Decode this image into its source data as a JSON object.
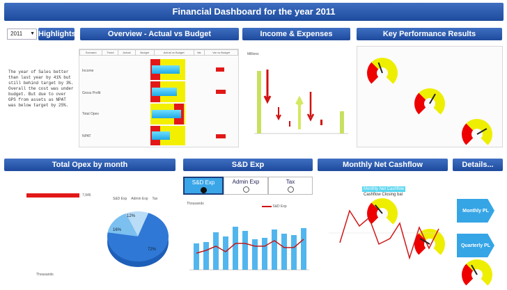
{
  "title": "Financial Dashboard for the year 2011",
  "year_select": "2011",
  "sections": {
    "highlights": "Highlights",
    "overview": "Overview - Actual vs Budget",
    "income": "Income & Expenses",
    "kpi": "Key Performance Results",
    "opex": "Total Opex by month",
    "sd": "S&D Exp",
    "cashflow": "Monthly Net Cashflow",
    "details": "Details..."
  },
  "highlights_text": "The year of Sales better than last year by 41% but still behind target by 3%. Overall the cost was under budget. But due to over GPS from assets as NPAT was below target by 25%.",
  "overview_table": {
    "headers": [
      "Scenario",
      "Trend",
      "Actual",
      "Budget",
      "Actual vs Budget",
      "Var",
      "Var vs Budget"
    ],
    "rows": [
      "Income",
      "Gross Profit",
      "Total Opex",
      "NPAT"
    ]
  },
  "income_chart": {
    "ylabel": "Millions"
  },
  "opex": {
    "bar_value": "7,945",
    "legend": [
      "S&D Exp",
      "Admin Exp",
      "Tax"
    ],
    "pie": [
      {
        "label": "72%",
        "value": 72,
        "color": "#2f78d6"
      },
      {
        "label": "16%",
        "value": 16,
        "color": "#7cc0f0"
      },
      {
        "label": "12%",
        "value": 12,
        "color": "#b9dcf7"
      }
    ],
    "xlabel": "Thousands"
  },
  "sd": {
    "tabs": [
      "S&D Exp",
      "Admin Exp",
      "Tax"
    ],
    "selected": 0,
    "legend": "S&D Exp",
    "ylabel": "Thousands"
  },
  "cashflow": {
    "legend": [
      "Monthly Net Cashflow",
      "Cashflow Closing bal"
    ]
  },
  "details": {
    "monthly": "Monthly PL",
    "quarterly": "Quarterly PL"
  },
  "colors": {
    "header": "#1d4a9c",
    "accent": "#35a5e6",
    "red": "#e03030",
    "yellow": "#f0f000"
  }
}
